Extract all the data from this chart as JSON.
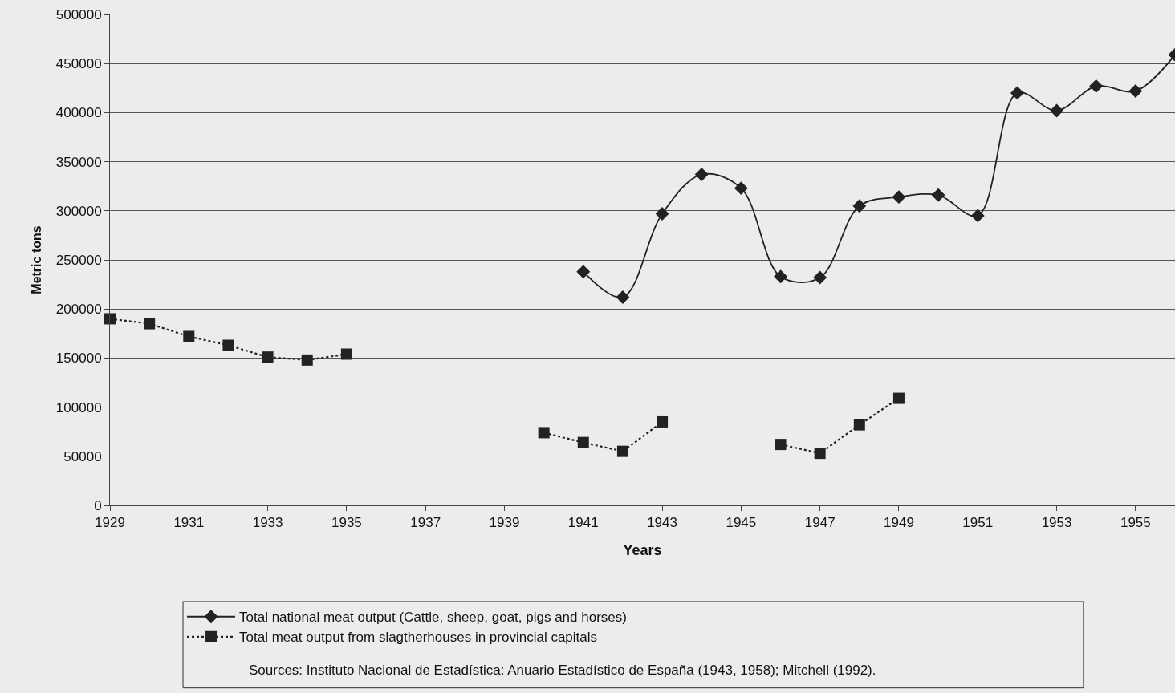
{
  "chart_data": {
    "type": "line",
    "xlabel": "Years",
    "ylabel": "Metric tons",
    "xlim": [
      1929,
      1956
    ],
    "xticks": [
      1929,
      1931,
      1933,
      1935,
      1937,
      1939,
      1941,
      1943,
      1945,
      1947,
      1949,
      1951,
      1953,
      1955
    ],
    "ylim": [
      0,
      500000
    ],
    "yticks": [
      0,
      50000,
      100000,
      150000,
      200000,
      250000,
      300000,
      350000,
      400000,
      450000,
      500000
    ],
    "grid": "y",
    "legend": "bottom",
    "series": [
      {
        "name": "Total national meat output (Cattle, sheep, goat, pigs and horses)",
        "color": "#222222",
        "marker": "diamond",
        "line_style": "solid",
        "x": [
          1941,
          1942,
          1943,
          1944,
          1945,
          1946,
          1947,
          1948,
          1949,
          1950,
          1951,
          1952,
          1953,
          1954,
          1955,
          1956
        ],
        "values": [
          238000,
          212000,
          297000,
          337000,
          323000,
          233000,
          232000,
          305000,
          314000,
          316000,
          295000,
          420000,
          402000,
          427000,
          422000,
          459000
        ]
      },
      {
        "name": "Total meat output from slagtherhouses in provincial capitals",
        "color": "#222222",
        "marker": "square",
        "line_style": "dotted",
        "x": [
          1929,
          1930,
          1931,
          1932,
          1933,
          1934,
          1935,
          1936,
          1940,
          1941,
          1942,
          1943,
          1944,
          1946,
          1947,
          1948,
          1949
        ],
        "values": [
          190000,
          185000,
          172000,
          163000,
          151000,
          148000,
          154000,
          null,
          74000,
          64000,
          55000,
          85000,
          null,
          62000,
          53000,
          82000,
          109000
        ]
      }
    ],
    "annotations": [
      "Sources: Instituto Nacional de Estadística: Anuario Estadístico de España (1943, 1958); Mitchell (1992)."
    ]
  }
}
